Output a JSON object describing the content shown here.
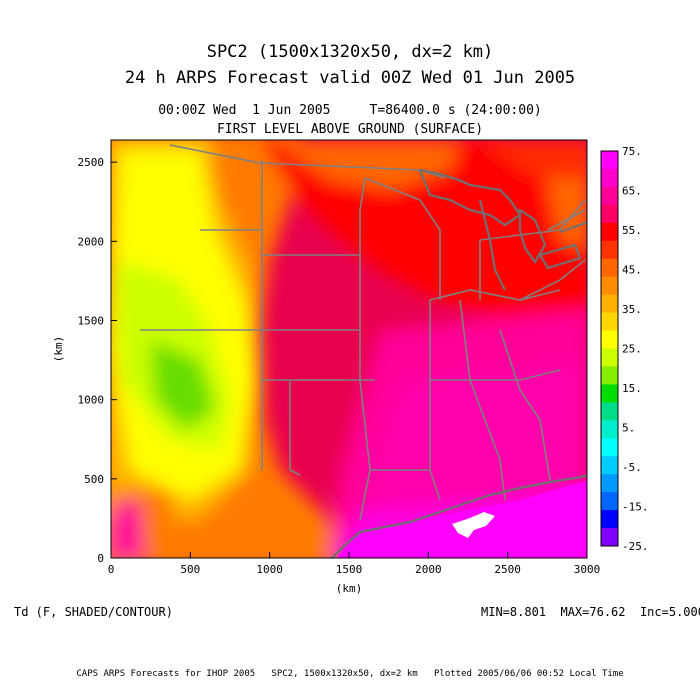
{
  "header": {
    "title_line1": "SPC2 (1500x1320x50, dx=2 km)",
    "title_line2": "24 h ARPS Forecast valid 00Z Wed 01 Jun 2005",
    "time_line": "00:00Z Wed  1 Jun 2005     T=86400.0 s (24:00:00)",
    "level_line": "FIRST LEVEL ABOVE GROUND (SURFACE)"
  },
  "axes": {
    "x_label": "(km)",
    "y_label": "(km)",
    "x_ticks": [
      "0",
      "500",
      "1000",
      "1500",
      "2000",
      "2500",
      "3000"
    ],
    "y_ticks": [
      "0",
      "500",
      "1000",
      "1500",
      "2000",
      "2500"
    ],
    "x_values": [
      0,
      500,
      1000,
      1500,
      2000,
      2500,
      3000
    ],
    "y_values": [
      0,
      500,
      1000,
      1500,
      2000,
      2500
    ],
    "x_range": [
      0,
      3000
    ],
    "y_range": [
      0,
      2640
    ]
  },
  "colorbar": {
    "labels": [
      "75.",
      "65.",
      "55.",
      "45.",
      "35.",
      "25.",
      "15.",
      "5.",
      "-5.",
      "-15.",
      "-25."
    ],
    "colors": [
      "#ff00ff",
      "#ff00cc",
      "#ff0099",
      "#ff0066",
      "#ff0000",
      "#ff3300",
      "#ff6600",
      "#ff8c00",
      "#ffb000",
      "#ffd700",
      "#ffff00",
      "#ccff00",
      "#88ee00",
      "#00dd00",
      "#00dd88",
      "#00eecc",
      "#00ffff",
      "#00ccff",
      "#0099ff",
      "#0066ff",
      "#0000ff",
      "#7f00ff"
    ]
  },
  "footer_left": "Td (F, SHADED/CONTOUR)",
  "footer_right": "MIN=8.801  MAX=76.62  Inc=5.000",
  "credit": "CAPS ARPS Forecasts for IHOP 2005   SPC2, 1500x1320x50, dx=2 km   Plotted 2005/06/06 00:52 Local Time",
  "chart_data": {
    "type": "heatmap",
    "title": "24 h ARPS Forecast valid 00Z Wed 01 Jun 2005",
    "variable": "Td (F, SHADED/CONTOUR)",
    "xlabel": "(km)",
    "ylabel": "(km)",
    "xlim": [
      0,
      3000
    ],
    "ylim": [
      0,
      2640
    ],
    "min": 8.801,
    "max": 76.62,
    "contour_interval": 5.0,
    "colorbar_range": [
      -25,
      75
    ]
  }
}
